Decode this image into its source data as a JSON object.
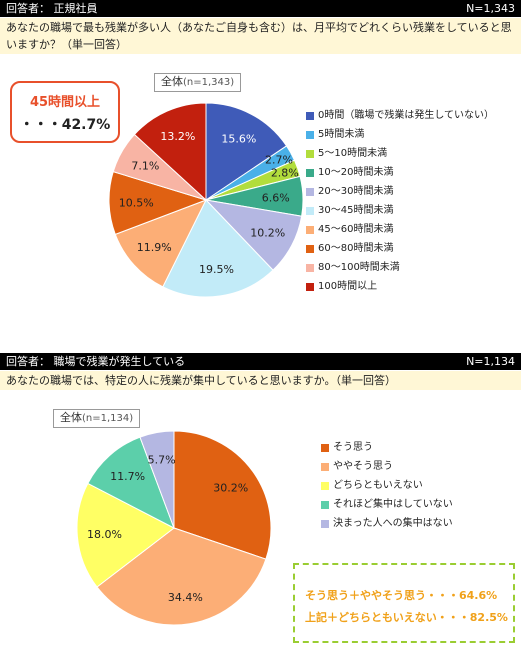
{
  "section1": {
    "respondent": "回答者： 正規社員",
    "n": "N=1,343",
    "question": "あなたの職場で最も残業が多い人（あなたご自身も含む）は、月平均でどれくらい残業をしていると思いますか？（単一回答）",
    "total_label": "全体",
    "total_n": "(n=1,343)",
    "callout_title": "45時間以上",
    "callout_value": "・・・42.7%"
  },
  "section2": {
    "respondent": "回答者： 職場で残業が発生している",
    "n": "N=1,134",
    "question": "あなたの職場では、特定の人に残業が集中していると思いますか。（単一回答）",
    "total_label": "全体",
    "total_n": "(n=1,134)",
    "callout_line1": "そう思う＋ややそう思う・・・64.6%",
    "callout_line2": "上記＋どちらともいえない・・・82.5%"
  },
  "chart_data": [
    {
      "type": "pie",
      "categories": [
        "0時間（職場で残業は発生していない）",
        "5時間未満",
        "5～10時間未満",
        "10～20時間未満",
        "20～30時間未満",
        "30～45時間未満",
        "45～60時間未満",
        "60～80時間未満",
        "80～100時間未満",
        "100時間以上"
      ],
      "values": [
        15.6,
        2.7,
        2.8,
        6.6,
        10.2,
        19.5,
        11.9,
        10.5,
        7.1,
        13.2
      ],
      "colors": [
        "#3f5bb8",
        "#4ab0e8",
        "#b2dd3c",
        "#3aaa8a",
        "#b4b7e2",
        "#c2ebf8",
        "#fcae76",
        "#e06112",
        "#f8b4a4",
        "#c2200e"
      ],
      "label_colors": [
        "#ffffff",
        "#222222",
        "#222222",
        "#222222",
        "#222222",
        "#222222",
        "#222222",
        "#222222",
        "#222222",
        "#ffffff"
      ],
      "labels": [
        "15.6%",
        "2.7%",
        "2.8%",
        "6.6%",
        "10.2%",
        "19.5%",
        "11.9%",
        "10.5%",
        "7.1%",
        "13.2%"
      ]
    },
    {
      "type": "pie",
      "categories": [
        "そう思う",
        "ややそう思う",
        "どちらともいえない",
        "それほど集中はしていない",
        "決まった人への集中はない"
      ],
      "values": [
        30.2,
        34.4,
        18.0,
        11.7,
        5.7
      ],
      "colors": [
        "#e06112",
        "#fcae76",
        "#ffff64",
        "#5ccfaa",
        "#b4b7e2"
      ],
      "label_colors": [
        "#222222",
        "#222222",
        "#222222",
        "#222222",
        "#222222"
      ],
      "labels": [
        "30.2%",
        "34.4%",
        "18.0%",
        "11.7%",
        "5.7%"
      ]
    }
  ]
}
